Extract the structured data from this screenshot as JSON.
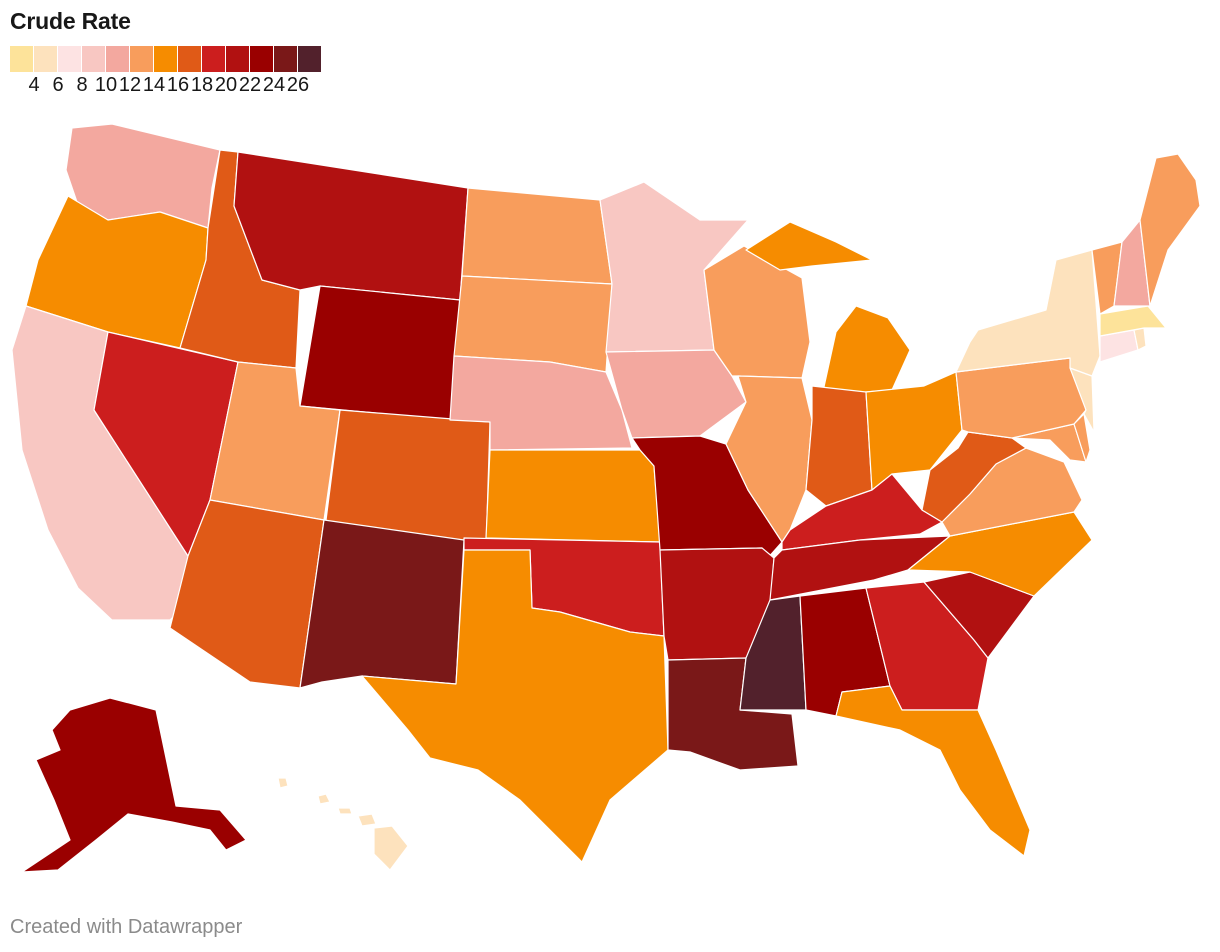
{
  "title": "Crude Rate",
  "legend": {
    "colors": [
      "#fde39a",
      "#fde2bd",
      "#fde3e3",
      "#f8c7c2",
      "#f3a89f",
      "#f89d5c",
      "#f68c00",
      "#e05a17",
      "#cc1e1e",
      "#b11111",
      "#9a0000",
      "#7a1818",
      "#52212c"
    ],
    "ticks": [
      "4",
      "6",
      "8",
      "10",
      "12",
      "14",
      "16",
      "18",
      "20",
      "22",
      "24",
      "26"
    ]
  },
  "states": [
    {
      "id": "WA",
      "color": "#f3a89f"
    },
    {
      "id": "OR",
      "color": "#f68c00"
    },
    {
      "id": "CA",
      "color": "#f8c7c2"
    },
    {
      "id": "NV",
      "color": "#cc1e1e"
    },
    {
      "id": "ID",
      "color": "#e05a17"
    },
    {
      "id": "MT",
      "color": "#b11111"
    },
    {
      "id": "WY",
      "color": "#9a0000"
    },
    {
      "id": "UT",
      "color": "#f89d5c"
    },
    {
      "id": "AZ",
      "color": "#e05a17"
    },
    {
      "id": "CO",
      "color": "#e05a17"
    },
    {
      "id": "NM",
      "color": "#7a1818"
    },
    {
      "id": "ND",
      "color": "#f89d5c"
    },
    {
      "id": "SD",
      "color": "#f89d5c"
    },
    {
      "id": "NE",
      "color": "#f3a89f"
    },
    {
      "id": "KS",
      "color": "#f68c00"
    },
    {
      "id": "OK",
      "color": "#cc1e1e"
    },
    {
      "id": "TX",
      "color": "#f68c00"
    },
    {
      "id": "MN",
      "color": "#f8c7c2"
    },
    {
      "id": "IA",
      "color": "#f3a89f"
    },
    {
      "id": "MO",
      "color": "#9a0000"
    },
    {
      "id": "AR",
      "color": "#b11111"
    },
    {
      "id": "LA",
      "color": "#7a1818"
    },
    {
      "id": "WI",
      "color": "#f89d5c"
    },
    {
      "id": "IL",
      "color": "#f89d5c"
    },
    {
      "id": "MI",
      "color": "#f68c00"
    },
    {
      "id": "IN",
      "color": "#e05a17"
    },
    {
      "id": "OH",
      "color": "#f68c00"
    },
    {
      "id": "KY",
      "color": "#cc1e1e"
    },
    {
      "id": "TN",
      "color": "#b11111"
    },
    {
      "id": "MS",
      "color": "#52212c"
    },
    {
      "id": "AL",
      "color": "#9a0000"
    },
    {
      "id": "GA",
      "color": "#cc1e1e"
    },
    {
      "id": "FL",
      "color": "#f68c00"
    },
    {
      "id": "SC",
      "color": "#b11111"
    },
    {
      "id": "NC",
      "color": "#f68c00"
    },
    {
      "id": "VA",
      "color": "#f89d5c"
    },
    {
      "id": "WV",
      "color": "#e05a17"
    },
    {
      "id": "MD",
      "color": "#f89d5c"
    },
    {
      "id": "DE",
      "color": "#f89d5c"
    },
    {
      "id": "PA",
      "color": "#f89d5c"
    },
    {
      "id": "NJ",
      "color": "#fde2bd"
    },
    {
      "id": "NY",
      "color": "#fde2bd"
    },
    {
      "id": "CT",
      "color": "#fde3e3"
    },
    {
      "id": "RI",
      "color": "#fde2bd"
    },
    {
      "id": "MA",
      "color": "#fde39a"
    },
    {
      "id": "VT",
      "color": "#f89d5c"
    },
    {
      "id": "NH",
      "color": "#f3a89f"
    },
    {
      "id": "ME",
      "color": "#f89d5c"
    },
    {
      "id": "AK",
      "color": "#9a0000"
    },
    {
      "id": "HI",
      "color": "#fde2bd"
    }
  ],
  "credit": "Created with Datawrapper"
}
